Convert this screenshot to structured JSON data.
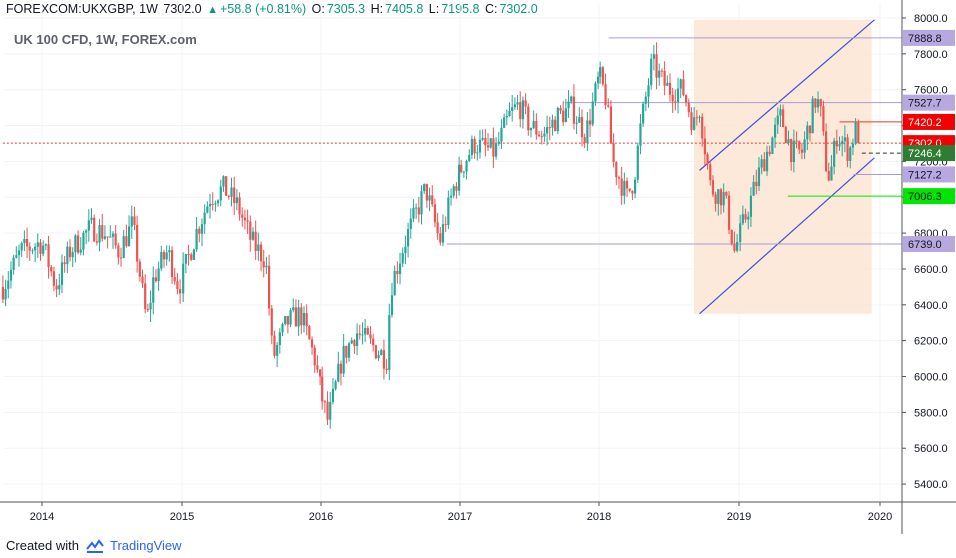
{
  "header": {
    "symbol": "FOREXCOM:UKXGBP, 1W",
    "last": "7302.0",
    "change": "+58.8 (+0.81%)",
    "o_label": "O:",
    "o": "7305.3",
    "h_label": "H:",
    "h": "7405.8",
    "l_label": "L:",
    "l": "7195.8",
    "c_label": "C:",
    "c": "7302.0"
  },
  "footer": {
    "created_with": "Created with",
    "brand": "TradingView"
  },
  "colors": {
    "up": "#26a69a",
    "down": "#ef5350",
    "channel": "#3d50e0",
    "channel_fill": "#fbe3cf",
    "purple": "#a99bd6",
    "red_label": "#f40000",
    "green_label": "#00e600",
    "dark_green": "#2e7d32"
  },
  "chart_data": {
    "type": "candlestick",
    "title": "UK 100 CFD, 1W, FOREX.com",
    "timeframe": "1W",
    "ylim": [
      5300,
      8000
    ],
    "y_ticks": [
      "8000.0",
      "7800.0",
      "7600.0",
      "7400.0",
      "7200.0",
      "7000.0",
      "6800.0",
      "6600.0",
      "6400.0",
      "6200.0",
      "6000.0",
      "5800.0",
      "5600.0",
      "5400.0"
    ],
    "x_ticks": [
      "2014",
      "2015",
      "2016",
      "2017",
      "2018",
      "2019",
      "2020"
    ],
    "x_range": [
      2013.72,
      2019.99
    ],
    "anchors": [
      [
        2013.72,
        6500
      ],
      [
        2013.85,
        6700
      ],
      [
        2014.0,
        6750
      ],
      [
        2014.1,
        6500
      ],
      [
        2014.2,
        6700
      ],
      [
        2014.35,
        6830
      ],
      [
        2014.45,
        6800
      ],
      [
        2014.55,
        6700
      ],
      [
        2014.65,
        6850
      ],
      [
        2014.75,
        6300
      ],
      [
        2014.8,
        6550
      ],
      [
        2014.9,
        6700
      ],
      [
        2014.98,
        6500
      ],
      [
        2015.1,
        6800
      ],
      [
        2015.2,
        7000
      ],
      [
        2015.3,
        7050
      ],
      [
        2015.4,
        6950
      ],
      [
        2015.5,
        6750
      ],
      [
        2015.6,
        6650
      ],
      [
        2015.65,
        6100
      ],
      [
        2015.75,
        6300
      ],
      [
        2015.85,
        6350
      ],
      [
        2015.95,
        6100
      ],
      [
        2016.0,
        5900
      ],
      [
        2016.05,
        5750
      ],
      [
        2016.15,
        6100
      ],
      [
        2016.25,
        6250
      ],
      [
        2016.4,
        6150
      ],
      [
        2016.47,
        6100
      ],
      [
        2016.5,
        6500
      ],
      [
        2016.6,
        6750
      ],
      [
        2016.75,
        7050
      ],
      [
        2016.85,
        6750
      ],
      [
        2016.95,
        7050
      ],
      [
        2017.0,
        7150
      ],
      [
        2017.1,
        7300
      ],
      [
        2017.25,
        7250
      ],
      [
        2017.35,
        7450
      ],
      [
        2017.42,
        7520
      ],
      [
        2017.5,
        7400
      ],
      [
        2017.6,
        7350
      ],
      [
        2017.7,
        7450
      ],
      [
        2017.8,
        7500
      ],
      [
        2017.9,
        7350
      ],
      [
        2018.0,
        7680
      ],
      [
        2018.05,
        7550
      ],
      [
        2018.1,
        7200
      ],
      [
        2018.2,
        7000
      ],
      [
        2018.25,
        7100
      ],
      [
        2018.3,
        7400
      ],
      [
        2018.38,
        7750
      ],
      [
        2018.45,
        7650
      ],
      [
        2018.5,
        7600
      ],
      [
        2018.6,
        7600
      ],
      [
        2018.68,
        7400
      ],
      [
        2018.72,
        7500
      ],
      [
        2018.8,
        7050
      ],
      [
        2018.9,
        7000
      ],
      [
        2018.97,
        6700
      ],
      [
        2019.05,
        6900
      ],
      [
        2019.15,
        7150
      ],
      [
        2019.25,
        7350
      ],
      [
        2019.3,
        7450
      ],
      [
        2019.38,
        7250
      ],
      [
        2019.45,
        7250
      ],
      [
        2019.55,
        7550
      ],
      [
        2019.58,
        7500
      ],
      [
        2019.62,
        7200
      ],
      [
        2019.65,
        7100
      ],
      [
        2019.7,
        7350
      ],
      [
        2019.75,
        7300
      ],
      [
        2019.79,
        7250
      ],
      [
        2019.83,
        7380
      ],
      [
        2019.87,
        7302
      ]
    ],
    "channel": {
      "upper": [
        [
          2018.72,
          7150
        ],
        [
          2019.97,
          7990
        ]
      ],
      "lower": [
        [
          2018.72,
          6350
        ],
        [
          2019.97,
          7220
        ]
      ],
      "box_x": [
        2018.68,
        2019.95
      ]
    },
    "levels": [
      {
        "value": 7888.8,
        "label": "7888.8",
        "style": "purple",
        "from": 2018.07
      },
      {
        "value": 7527.7,
        "label": "7527.7",
        "style": "purple",
        "from": 2017.75
      },
      {
        "value": 7420.2,
        "label": "7420.2",
        "style": "red",
        "from": 2019.72
      },
      {
        "value": 7302.0,
        "label": "7302.0",
        "style": "last",
        "from": 2013.72
      },
      {
        "value": 7246.4,
        "label": "7246.4",
        "style": "dark",
        "from": 2019.88
      },
      {
        "value": 7127.2,
        "label": "7127.2",
        "style": "purple",
        "from": 2019.82
      },
      {
        "value": 7006.3,
        "label": "7006.3",
        "style": "green",
        "from": 2019.35
      },
      {
        "value": 6739.0,
        "label": "6739.0",
        "style": "purple",
        "from": 2016.9
      }
    ]
  }
}
